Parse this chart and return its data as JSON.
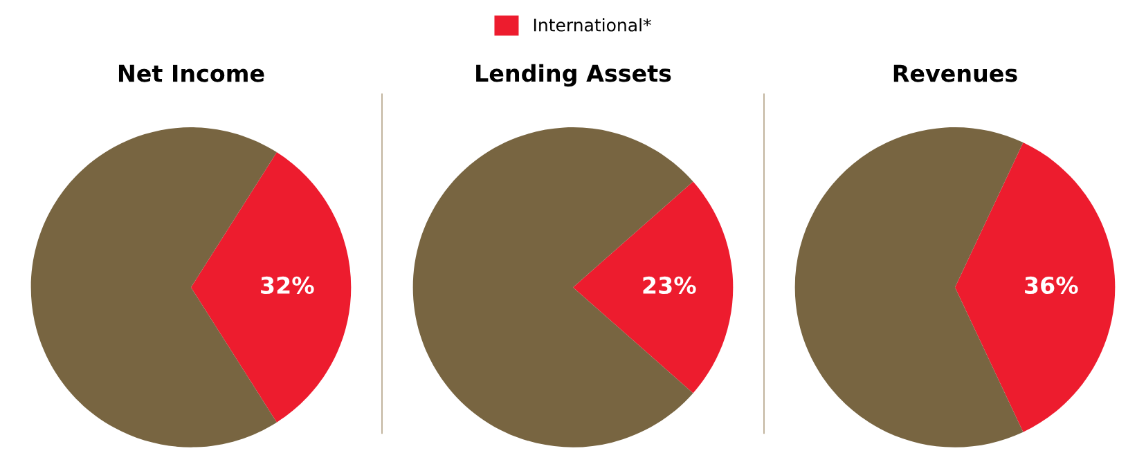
{
  "chart_data": [
    {
      "type": "pie",
      "title": "Net Income",
      "categories": [
        "International*",
        null
      ],
      "values": [
        32,
        68
      ],
      "colors": [
        "#ed1c2e",
        "#786541"
      ],
      "value_labels": [
        "32%",
        null
      ],
      "legend": "top"
    },
    {
      "type": "pie",
      "title": "Lending Assets",
      "values": [
        23,
        77
      ],
      "colors": [
        "#ed1c2e",
        "#786541"
      ],
      "value_labels": [
        "23%",
        null
      ]
    },
    {
      "type": "pie",
      "title": "Revenues",
      "values": [
        36,
        64
      ],
      "colors": [
        "#ed1c2e",
        "#786541"
      ],
      "value_labels": [
        "36%",
        null
      ]
    }
  ]
}
